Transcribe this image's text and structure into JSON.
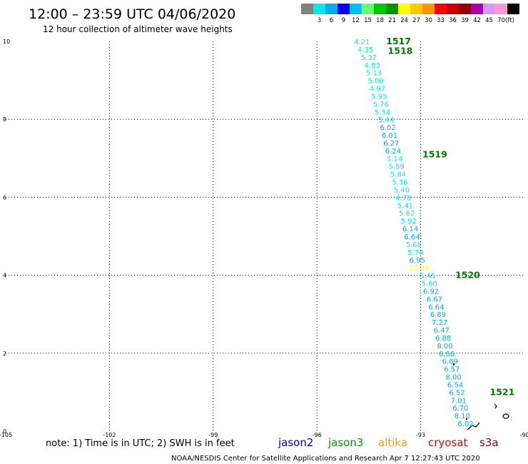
{
  "title": "12:00 – 23:59 UTC 04/06/2020",
  "subtitle": "12 hour collection of altimeter wave heights",
  "note": "note:  1) Time is in UTC;  2) SWH is in feet",
  "credit": "NOAA/NESDIS Center for Satellite Applications and Research    Apr  7 12:27:43 UTC 2020",
  "satellites": [
    {
      "name": "jason2",
      "color": "#0000cc"
    },
    {
      "name": "jason3",
      "color": "#009900"
    },
    {
      "name": "altika",
      "color": "#ff9900"
    },
    {
      "name": "cryosat",
      "color": "#dd0000"
    },
    {
      "name": "s3a",
      "color": "#990000"
    }
  ],
  "colorbar": {
    "unit_label": "(ft)",
    "bins": [
      {
        "label": "",
        "color": "#808080"
      },
      {
        "label": "3",
        "color": "#00e8e8"
      },
      {
        "label": "6",
        "color": "#00a8f8"
      },
      {
        "label": "9",
        "color": "#0000ee"
      },
      {
        "label": "12",
        "color": "#00c0ff"
      },
      {
        "label": "15",
        "color": "#66ff66"
      },
      {
        "label": "18",
        "color": "#00c800"
      },
      {
        "label": "21",
        "color": "#009600"
      },
      {
        "label": "24",
        "color": "#ffff00"
      },
      {
        "label": "27",
        "color": "#ffc800"
      },
      {
        "label": "30",
        "color": "#ff9600"
      },
      {
        "label": "33",
        "color": "#ff0000"
      },
      {
        "label": "36",
        "color": "#c80000"
      },
      {
        "label": "39",
        "color": "#960000"
      },
      {
        "label": "42",
        "color": "#aa00aa"
      },
      {
        "label": "45",
        "color": "#d896ff"
      },
      {
        "label": "70",
        "color": "#ff96d8"
      },
      {
        "label": "",
        "color": "#000000"
      }
    ]
  },
  "chart_data": {
    "type": "scatter",
    "xlim": [
      -105,
      -90
    ],
    "ylim": [
      0,
      10
    ],
    "grid": true,
    "x_ticks": [
      {
        "value": -105,
        "label": "-105"
      },
      {
        "value": -102,
        "label": "-102"
      },
      {
        "value": -99,
        "label": "-99"
      },
      {
        "value": -96,
        "label": "-96"
      },
      {
        "value": -93,
        "label": "-93"
      },
      {
        "value": -90,
        "label": "-90"
      }
    ],
    "y_ticks": [
      {
        "value": 0,
        "label": "0"
      },
      {
        "value": 2,
        "label": "2"
      },
      {
        "value": 4,
        "label": "4"
      },
      {
        "value": 6,
        "label": "6"
      },
      {
        "value": 8,
        "label": "8"
      },
      {
        "value": 10,
        "label": "10"
      }
    ],
    "series": [
      {
        "satellite": "jason3",
        "points": [
          {
            "x": -94.7,
            "y": 10.0,
            "label": "4.21",
            "color": "#00e8e8"
          },
          {
            "x": -94.6,
            "y": 9.8,
            "label": "4.35",
            "color": "#00e8e8"
          },
          {
            "x": -94.5,
            "y": 9.6,
            "label": "5.37",
            "color": "#00e8e8"
          },
          {
            "x": -94.4,
            "y": 9.4,
            "label": "4.83",
            "color": "#00e8e8"
          },
          {
            "x": -94.35,
            "y": 9.2,
            "label": "5.13",
            "color": "#00e8e8"
          },
          {
            "x": -94.3,
            "y": 9.0,
            "label": "5.00",
            "color": "#00e8e8"
          },
          {
            "x": -94.25,
            "y": 8.8,
            "label": "4.97",
            "color": "#00e8e8"
          },
          {
            "x": -94.2,
            "y": 8.6,
            "label": "5.95",
            "color": "#00e8e8"
          },
          {
            "x": -94.15,
            "y": 8.4,
            "label": "5.76",
            "color": "#00e8e8"
          },
          {
            "x": -94.1,
            "y": 8.2,
            "label": "5.54",
            "color": "#00e8e8"
          },
          {
            "x": -94.0,
            "y": 8.0,
            "label": "5.44",
            "color": "#00e8e8"
          },
          {
            "x": -93.95,
            "y": 7.8,
            "label": "6.02",
            "color": "#00a8f8"
          },
          {
            "x": -93.9,
            "y": 7.6,
            "label": "6.01",
            "color": "#00a8f8"
          },
          {
            "x": -93.85,
            "y": 7.4,
            "label": "6.27",
            "color": "#00a8f8"
          },
          {
            "x": -93.8,
            "y": 7.2,
            "label": "6.24",
            "color": "#00a8f8"
          },
          {
            "x": -93.75,
            "y": 7.0,
            "label": "5.14",
            "color": "#00e8e8"
          },
          {
            "x": -93.7,
            "y": 6.8,
            "label": "5.59",
            "color": "#00e8e8"
          },
          {
            "x": -93.65,
            "y": 6.6,
            "label": "5.84",
            "color": "#00e8e8"
          },
          {
            "x": -93.6,
            "y": 6.4,
            "label": "5.36",
            "color": "#00e8e8"
          },
          {
            "x": -93.55,
            "y": 6.2,
            "label": "5.40",
            "color": "#00e8e8"
          },
          {
            "x": -93.5,
            "y": 6.0,
            "label": "4.78",
            "color": "#00e8e8"
          },
          {
            "x": -93.45,
            "y": 5.8,
            "label": "5.41",
            "color": "#00e8e8"
          },
          {
            "x": -93.4,
            "y": 5.6,
            "label": "5.62",
            "color": "#00e8e8"
          },
          {
            "x": -93.35,
            "y": 5.4,
            "label": "5.92",
            "color": "#00e8e8"
          },
          {
            "x": -93.3,
            "y": 5.2,
            "label": "6.14",
            "color": "#00a8f8"
          },
          {
            "x": -93.25,
            "y": 5.0,
            "label": "6.64",
            "color": "#00a8f8"
          },
          {
            "x": -93.2,
            "y": 4.8,
            "label": "5.68",
            "color": "#00e8e8"
          },
          {
            "x": -93.15,
            "y": 4.6,
            "label": "5.74",
            "color": "#00e8e8"
          },
          {
            "x": -93.1,
            "y": 4.4,
            "label": "6.95",
            "color": "#00a8f8"
          },
          {
            "x": -93.05,
            "y": 4.2,
            "label": "22.30",
            "color": "#ffff00"
          },
          {
            "x": -92.8,
            "y": 4.0,
            "label": "5.45",
            "color": "#00e8e8"
          },
          {
            "x": -92.75,
            "y": 3.8,
            "label": "5.60",
            "color": "#00e8e8"
          },
          {
            "x": -92.7,
            "y": 3.6,
            "label": "6.92",
            "color": "#00a8f8"
          },
          {
            "x": -92.6,
            "y": 3.4,
            "label": "6.67",
            "color": "#00a8f8"
          },
          {
            "x": -92.55,
            "y": 3.2,
            "label": "6.64",
            "color": "#00a8f8"
          },
          {
            "x": -92.5,
            "y": 3.0,
            "label": "6.89",
            "color": "#00a8f8"
          },
          {
            "x": -92.45,
            "y": 2.8,
            "label": "7.27",
            "color": "#00a8f8"
          },
          {
            "x": -92.4,
            "y": 2.6,
            "label": "6.47",
            "color": "#00a8f8"
          },
          {
            "x": -92.35,
            "y": 2.4,
            "label": "6.88",
            "color": "#00a8f8"
          },
          {
            "x": -92.3,
            "y": 2.2,
            "label": "8.00",
            "color": "#00a8f8"
          },
          {
            "x": -92.25,
            "y": 2.0,
            "label": "6.66",
            "color": "#00a8f8"
          },
          {
            "x": -92.15,
            "y": 1.8,
            "label": "6.89",
            "color": "#00a8f8"
          },
          {
            "x": -92.1,
            "y": 1.6,
            "label": "6.57",
            "color": "#00a8f8"
          },
          {
            "x": -92.05,
            "y": 1.4,
            "label": "8.00",
            "color": "#00a8f8"
          },
          {
            "x": -92.0,
            "y": 1.2,
            "label": "6.54",
            "color": "#00a8f8"
          },
          {
            "x": -91.95,
            "y": 1.0,
            "label": "6.52",
            "color": "#00a8f8"
          },
          {
            "x": -91.9,
            "y": 0.8,
            "label": "7.01",
            "color": "#00a8f8"
          },
          {
            "x": -91.85,
            "y": 0.6,
            "label": "6.70",
            "color": "#00a8f8"
          },
          {
            "x": -91.8,
            "y": 0.4,
            "label": "8.10",
            "color": "#00a8f8"
          },
          {
            "x": -91.7,
            "y": 0.2,
            "label": "6.02",
            "color": "#00a8f8"
          }
        ]
      }
    ],
    "pass_labels": [
      {
        "x": -94.0,
        "y": 10.0,
        "label": "1517"
      },
      {
        "x": -93.95,
        "y": 9.75,
        "label": "1518"
      },
      {
        "x": -92.95,
        "y": 7.1,
        "label": "1519"
      },
      {
        "x": -92.0,
        "y": 4.0,
        "label": "1520"
      },
      {
        "x": -91.0,
        "y": 1.0,
        "label": "1521"
      }
    ]
  }
}
